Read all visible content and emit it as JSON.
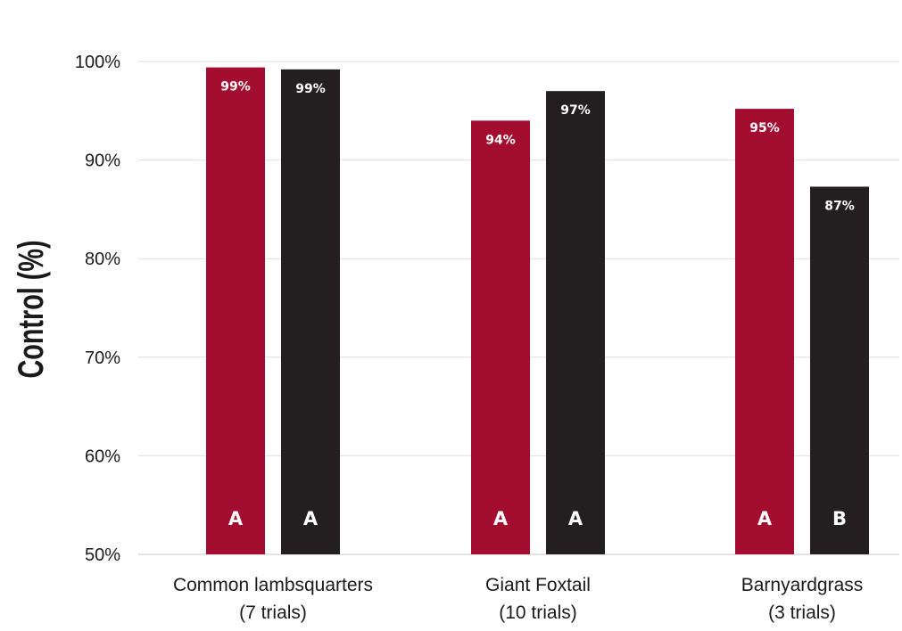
{
  "chart_data": {
    "type": "bar",
    "ylabel": "Control (%)",
    "ylim": [
      50,
      100
    ],
    "yticks": [
      "50%",
      "60%",
      "70%",
      "80%",
      "90%",
      "100%"
    ],
    "grid": true,
    "categories": [
      {
        "line1": "Common lambsquarters",
        "line2": "(7 trials)"
      },
      {
        "line1": "Giant Foxtail",
        "line2": "(10 trials)"
      },
      {
        "line1": "Barnyardgrass",
        "line2": "(3 trials)"
      }
    ],
    "series": [
      {
        "color": "#a30d2f",
        "values": [
          99.4,
          94.0,
          95.2
        ],
        "value_labels": [
          "99%",
          "94%",
          "95%"
        ],
        "significance": [
          "A",
          "A",
          "A"
        ]
      },
      {
        "color": "#231f20",
        "values": [
          99.2,
          97.0,
          87.3
        ],
        "value_labels": [
          "99%",
          "97%",
          "87%"
        ],
        "significance": [
          "A",
          "A",
          "B"
        ]
      }
    ]
  }
}
